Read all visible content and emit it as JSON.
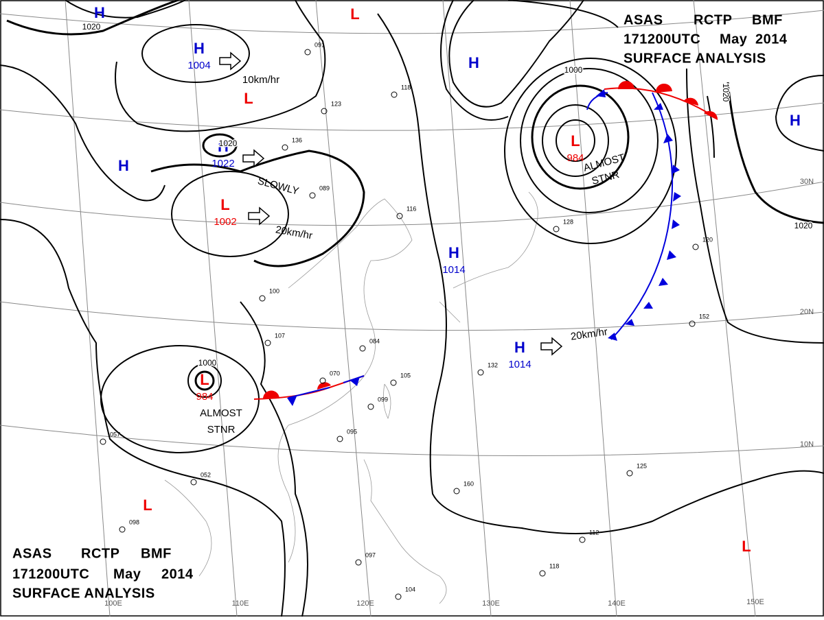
{
  "header": {
    "line1": [
      "ASAS",
      "RCTP",
      "BMF"
    ],
    "line2": [
      "171200UTC",
      "May",
      "2014"
    ],
    "line3": "SURFACE ANALYSIS"
  },
  "systems": [
    {
      "type": "H",
      "pressure": "1004"
    },
    {
      "type": "L"
    },
    {
      "type": "H",
      "pressure": "1022"
    },
    {
      "type": "H"
    },
    {
      "type": "L",
      "pressure": "1002"
    },
    {
      "type": "L"
    },
    {
      "type": "H"
    },
    {
      "type": "H"
    },
    {
      "type": "L",
      "pressure": "984"
    },
    {
      "type": "H"
    },
    {
      "type": "H",
      "pressure": "1014"
    },
    {
      "type": "H",
      "pressure": "1014"
    },
    {
      "type": "L",
      "pressure": "984"
    },
    {
      "type": "L"
    },
    {
      "type": "L"
    }
  ],
  "isobar_labels": [
    "1020",
    "1020",
    "1000",
    "1020",
    "1020",
    "1000"
  ],
  "annotations": [
    "10km/hr",
    "SLOWLY",
    "20km/hr",
    "20km/hr",
    "ALMOST",
    "STNR",
    "ALMOST",
    "STNR"
  ],
  "latitudes": [
    "30N",
    "20N",
    "10N"
  ],
  "longitudes": [
    "100E",
    "110E",
    "120E",
    "130E",
    "140E",
    "150E"
  ],
  "stations": [
    "091",
    "123",
    "136",
    "089",
    "107",
    "116",
    "100",
    "084",
    "070",
    "105",
    "099",
    "095",
    "118",
    "132",
    "128",
    "120",
    "152",
    "125",
    "160",
    "112",
    "118",
    "104",
    "097",
    "052",
    "057",
    "098"
  ]
}
